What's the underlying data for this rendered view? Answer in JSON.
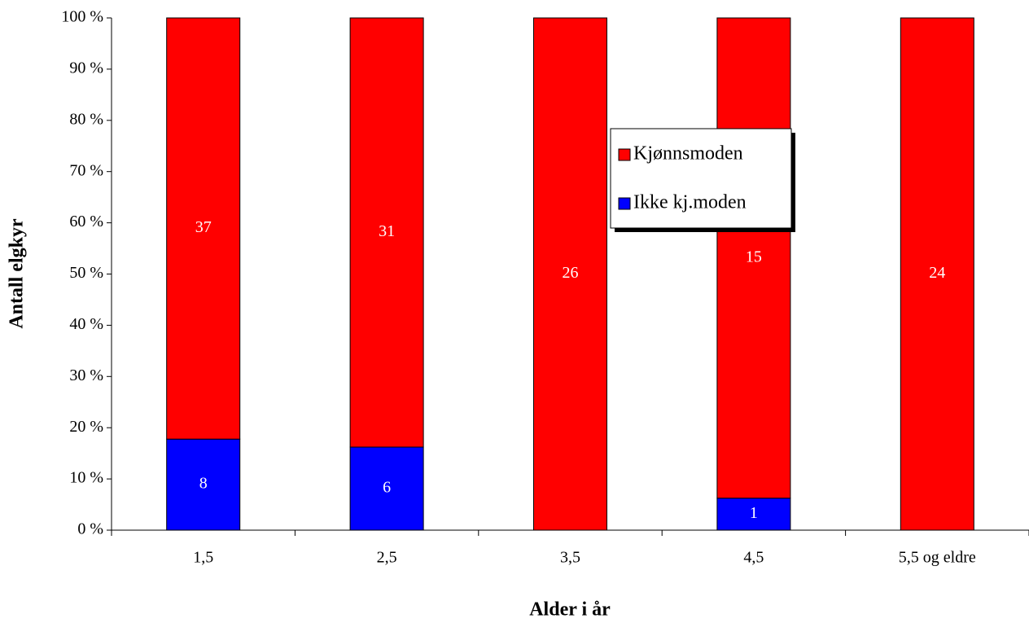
{
  "chart_data": {
    "type": "bar",
    "stacking": "percent",
    "x_label": "Alder i år",
    "y_label": "Antall elgkyr",
    "categories": [
      "1,5",
      "2,5",
      "3,5",
      "4,5",
      "5,5 og eldre"
    ],
    "series": [
      {
        "name": "Ikke kj.moden",
        "color": "#0000ff",
        "values": [
          8,
          6,
          null,
          1,
          null
        ]
      },
      {
        "name": "Kjønnsmoden",
        "color": "#ff0000",
        "values": [
          37,
          31,
          26,
          15,
          24
        ]
      }
    ],
    "ylim": [
      0,
      100
    ],
    "yticks": [
      {
        "value": 0,
        "label": "0 %"
      },
      {
        "value": 10,
        "label": "10 %"
      },
      {
        "value": 20,
        "label": "20 %"
      },
      {
        "value": 30,
        "label": "30 %"
      },
      {
        "value": 40,
        "label": "40 %"
      },
      {
        "value": 50,
        "label": "50 %"
      },
      {
        "value": 60,
        "label": "60 %"
      },
      {
        "value": 70,
        "label": "70 %"
      },
      {
        "value": 80,
        "label": "80 %"
      },
      {
        "value": 90,
        "label": "90 %"
      },
      {
        "value": 100,
        "label": "100 %"
      }
    ],
    "legend": "center",
    "grid": false
  }
}
